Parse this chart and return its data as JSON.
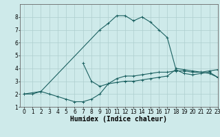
{
  "background_color": "#ceeaea",
  "grid_color": "#aecece",
  "line_color": "#1a6060",
  "xlabel": "Humidex (Indice chaleur)",
  "ylabel": "",
  "xlim": [
    -0.5,
    23
  ],
  "ylim": [
    1,
    9
  ],
  "xticks": [
    0,
    1,
    2,
    3,
    4,
    5,
    6,
    7,
    8,
    9,
    10,
    11,
    12,
    13,
    14,
    15,
    16,
    17,
    18,
    19,
    20,
    21,
    22,
    23
  ],
  "yticks": [
    1,
    2,
    3,
    4,
    5,
    6,
    7,
    8
  ],
  "curve1_x": [
    0,
    1,
    2,
    3,
    4,
    5,
    6,
    7,
    8,
    9,
    10,
    11,
    12,
    13,
    14,
    15,
    16,
    17,
    18,
    19,
    20,
    21,
    22,
    23
  ],
  "curve1_y": [
    2.0,
    2.0,
    2.2,
    2.0,
    1.8,
    1.6,
    1.4,
    1.4,
    1.6,
    2.0,
    2.8,
    3.2,
    3.4,
    3.4,
    3.5,
    3.6,
    3.7,
    3.7,
    3.8,
    3.8,
    3.7,
    3.7,
    3.8,
    3.9
  ],
  "curve2_x": [
    0,
    2,
    9,
    10,
    11,
    12,
    13,
    14,
    15,
    16,
    17,
    18,
    19,
    20,
    21,
    22,
    23
  ],
  "curve2_y": [
    2.0,
    2.2,
    7.0,
    7.5,
    8.1,
    8.1,
    7.7,
    8.0,
    7.6,
    7.0,
    6.4,
    4.0,
    3.9,
    3.8,
    3.7,
    3.6,
    3.3
  ],
  "curve3_x": [
    7,
    8,
    9,
    10,
    11,
    12,
    13,
    14,
    15,
    16,
    17,
    18,
    19,
    20,
    21,
    22,
    23
  ],
  "curve3_y": [
    4.4,
    3.0,
    2.6,
    2.8,
    2.9,
    3.0,
    3.0,
    3.1,
    3.2,
    3.3,
    3.4,
    3.9,
    3.6,
    3.5,
    3.6,
    3.7,
    3.3
  ],
  "tick_fontsize": 5.5,
  "label_fontsize": 7
}
